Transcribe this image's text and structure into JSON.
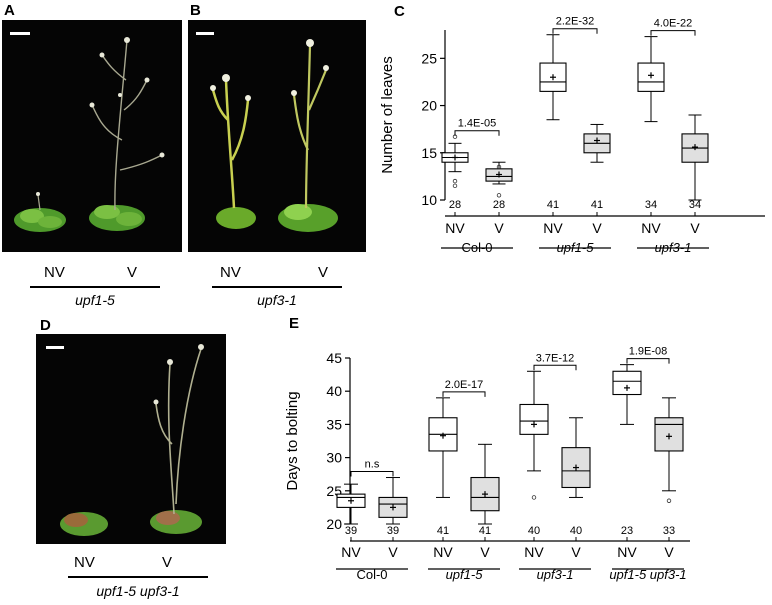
{
  "panels": {
    "A": {
      "letter": "A",
      "labels": [
        "NV",
        "V"
      ],
      "genotype": "upf1-5"
    },
    "B": {
      "letter": "B",
      "labels": [
        "NV",
        "V"
      ],
      "genotype": "upf3-1"
    },
    "D": {
      "letter": "D",
      "labels": [
        "NV",
        "V"
      ],
      "genotype": "upf1-5 upf3-1"
    }
  },
  "chart_data": [
    {
      "panel": "C",
      "type": "box",
      "ylabel": "Number of leaves",
      "ylim": [
        10,
        28
      ],
      "yticks": [
        10,
        15,
        20,
        25
      ],
      "conditions": [
        "NV",
        "V"
      ],
      "genotype_groups": [
        "Col-0",
        "upf1-5",
        "upf3-1"
      ],
      "boxes": [
        {
          "group": "Col-0",
          "condition": "NV",
          "n": "28",
          "min": 13,
          "q1": 14,
          "median": 14.5,
          "q3": 15,
          "max": 16,
          "mean": 14.5,
          "outliers": [
            11.5,
            12,
            16.7
          ],
          "fill": "#ffffff"
        },
        {
          "group": "Col-0",
          "condition": "V",
          "n": "28",
          "min": 11.7,
          "q1": 12,
          "median": 12.5,
          "q3": 13.3,
          "max": 14,
          "mean": 12.7,
          "outliers": [
            10.5,
            13.5
          ],
          "fill": "#e0e0e0"
        },
        {
          "group": "upf1-5",
          "condition": "NV",
          "n": "41",
          "min": 18.5,
          "q1": 21.5,
          "median": 22.5,
          "q3": 24.5,
          "max": 27.5,
          "mean": 23,
          "outliers": [],
          "fill": "#ffffff"
        },
        {
          "group": "upf1-5",
          "condition": "V",
          "n": "41",
          "min": 14,
          "q1": 15,
          "median": 16,
          "q3": 17,
          "max": 18,
          "mean": 16.3,
          "outliers": [],
          "fill": "#e0e0e0"
        },
        {
          "group": "upf3-1",
          "condition": "NV",
          "n": "34",
          "min": 18.3,
          "q1": 21.5,
          "median": 22.5,
          "q3": 24.5,
          "max": 27.3,
          "mean": 23.2,
          "outliers": [],
          "fill": "#ffffff"
        },
        {
          "group": "upf3-1",
          "condition": "V",
          "n": "34",
          "min": 10,
          "q1": 14,
          "median": 15.5,
          "q3": 17,
          "max": 19,
          "mean": 15.6,
          "outliers": [],
          "fill": "#e0e0e0"
        }
      ],
      "comparisons": [
        {
          "group": "Col-0",
          "label": "1.4E-05"
        },
        {
          "group": "upf1-5",
          "label": "2.2E-32"
        },
        {
          "group": "upf3-1",
          "label": "4.0E-22"
        }
      ]
    },
    {
      "panel": "E",
      "type": "box",
      "ylabel": "Days to bolting",
      "ylim": [
        20,
        45
      ],
      "yticks": [
        20,
        25,
        30,
        35,
        40,
        45
      ],
      "conditions": [
        "NV",
        "V"
      ],
      "genotype_groups": [
        "Col-0",
        "upf1-5",
        "upf3-1",
        "upf1-5 upf3-1"
      ],
      "boxes": [
        {
          "group": "Col-0",
          "condition": "NV",
          "n": "39",
          "min": 20,
          "q1": 22.5,
          "median": 24,
          "q3": 24.5,
          "max": 26,
          "mean": 23.5,
          "outliers": [],
          "fill": "#ffffff"
        },
        {
          "group": "Col-0",
          "condition": "V",
          "n": "39",
          "min": 20,
          "q1": 21,
          "median": 23,
          "q3": 24,
          "max": 27,
          "mean": 22.5,
          "outliers": [],
          "fill": "#e0e0e0"
        },
        {
          "group": "upf1-5",
          "condition": "NV",
          "n": "41",
          "min": 24,
          "q1": 31,
          "median": 33.5,
          "q3": 36,
          "max": 39,
          "mean": 33.3,
          "outliers": [],
          "fill": "#ffffff"
        },
        {
          "group": "upf1-5",
          "condition": "V",
          "n": "41",
          "min": 20,
          "q1": 22,
          "median": 24,
          "q3": 27,
          "max": 32,
          "mean": 24.5,
          "outliers": [],
          "fill": "#e0e0e0"
        },
        {
          "group": "upf3-1",
          "condition": "NV",
          "n": "40",
          "min": 28,
          "q1": 33.5,
          "median": 35.5,
          "q3": 38,
          "max": 43,
          "mean": 35,
          "outliers": [
            24
          ],
          "fill": "#ffffff"
        },
        {
          "group": "upf3-1",
          "condition": "V",
          "n": "40",
          "min": 24,
          "q1": 25.5,
          "median": 28,
          "q3": 31.5,
          "max": 36,
          "mean": 28.5,
          "outliers": [],
          "fill": "#e0e0e0"
        },
        {
          "group": "upf1-5 upf3-1",
          "condition": "NV",
          "n": "23",
          "min": 35,
          "q1": 39.5,
          "median": 41.5,
          "q3": 43,
          "max": 44,
          "mean": 40.5,
          "outliers": [],
          "fill": "#ffffff"
        },
        {
          "group": "upf1-5 upf3-1",
          "condition": "V",
          "n": "33",
          "min": 25,
          "q1": 31,
          "median": 35,
          "q3": 36,
          "max": 39,
          "mean": 33.2,
          "outliers": [
            23.5
          ],
          "fill": "#e0e0e0"
        }
      ],
      "comparisons": [
        {
          "group": "Col-0",
          "label": "n.s"
        },
        {
          "group": "upf1-5",
          "label": "2.0E-17"
        },
        {
          "group": "upf3-1",
          "label": "3.7E-12"
        },
        {
          "group": "upf1-5 upf3-1",
          "label": "1.9E-08"
        }
      ]
    }
  ]
}
